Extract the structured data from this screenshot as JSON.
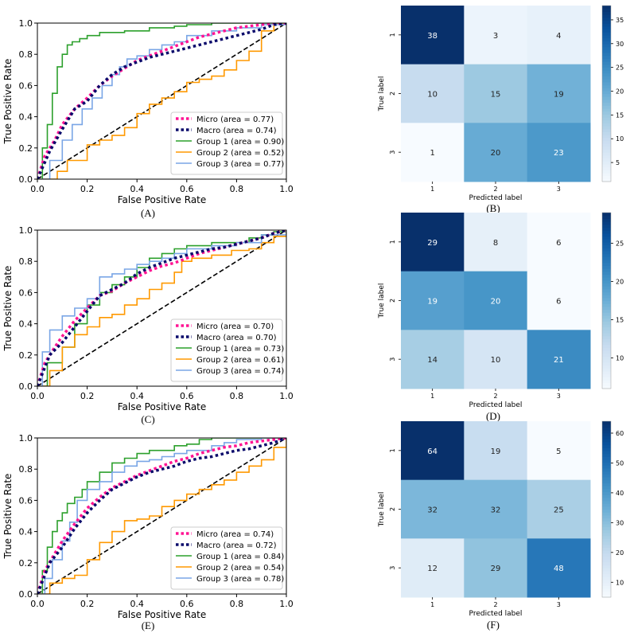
{
  "figure_title": "",
  "chart_data": [
    {
      "type": "line",
      "panel": "A",
      "caption": "(A)",
      "xlabel": "False Positive Rate",
      "ylabel": "True Positive Rate",
      "xlim": [
        0,
        1
      ],
      "ylim": [
        0,
        1
      ],
      "xticks": [
        0,
        0.2,
        0.4,
        0.6,
        0.8,
        1.0
      ],
      "yticks": [
        0,
        0.2,
        0.4,
        0.6,
        0.8,
        1.0
      ],
      "xtick_labels": [
        "0.0",
        "0.2",
        "0.4",
        "0.6",
        "0.8",
        "1.0"
      ],
      "ytick_labels": [
        "0.0",
        "0.2",
        "0.4",
        "0.6",
        "0.8",
        "1.0"
      ],
      "legend_position": "bottom-right",
      "series": [
        {
          "name": "Micro (area = 0.77)",
          "color": "#ff1493",
          "style": "dotted",
          "x": [
            0,
            0.03,
            0.07,
            0.1,
            0.15,
            0.2,
            0.25,
            0.3,
            0.35,
            0.4,
            0.45,
            0.5,
            0.55,
            0.6,
            0.65,
            0.7,
            0.75,
            0.8,
            0.85,
            0.9,
            0.95,
            1.0
          ],
          "y": [
            0,
            0.15,
            0.25,
            0.35,
            0.45,
            0.52,
            0.6,
            0.66,
            0.71,
            0.76,
            0.79,
            0.82,
            0.85,
            0.88,
            0.91,
            0.93,
            0.95,
            0.97,
            0.98,
            0.99,
            1.0,
            1.0
          ]
        },
        {
          "name": "Macro (area = 0.74)",
          "color": "#0a0a6b",
          "style": "dotted",
          "x": [
            0,
            0.05,
            0.1,
            0.15,
            0.2,
            0.25,
            0.3,
            0.35,
            0.4,
            0.45,
            0.5,
            0.55,
            0.6,
            0.65,
            0.7,
            0.75,
            0.8,
            0.85,
            0.9,
            0.95,
            1.0
          ],
          "y": [
            0,
            0.18,
            0.32,
            0.45,
            0.5,
            0.6,
            0.67,
            0.72,
            0.75,
            0.78,
            0.8,
            0.82,
            0.84,
            0.86,
            0.88,
            0.9,
            0.92,
            0.94,
            0.96,
            0.99,
            1.0
          ]
        },
        {
          "name": "Group 1 (area = 0.90)",
          "color": "#2ca02c",
          "style": "solid",
          "x": [
            0,
            0.02,
            0.04,
            0.06,
            0.08,
            0.1,
            0.12,
            0.14,
            0.17,
            0.2,
            0.25,
            0.3,
            0.35,
            0.45,
            0.55,
            0.6,
            0.7,
            0.8,
            0.9,
            1.0
          ],
          "y": [
            0,
            0.2,
            0.35,
            0.55,
            0.72,
            0.8,
            0.86,
            0.88,
            0.9,
            0.92,
            0.94,
            0.94,
            0.95,
            0.97,
            0.98,
            0.99,
            1.0,
            1.0,
            1.0,
            1.0
          ]
        },
        {
          "name": "Group 2 (area = 0.52)",
          "color": "#ff9900",
          "style": "solid",
          "x": [
            0,
            0.08,
            0.12,
            0.2,
            0.25,
            0.3,
            0.35,
            0.4,
            0.45,
            0.5,
            0.55,
            0.6,
            0.65,
            0.7,
            0.75,
            0.8,
            0.85,
            0.9,
            0.95,
            1.0
          ],
          "y": [
            0,
            0.05,
            0.12,
            0.22,
            0.25,
            0.28,
            0.33,
            0.42,
            0.48,
            0.52,
            0.56,
            0.62,
            0.64,
            0.66,
            0.7,
            0.76,
            0.82,
            0.95,
            1.0,
            1.0
          ]
        },
        {
          "name": "Group 3 (area = 0.77)",
          "color": "#7aa6e6",
          "style": "solid",
          "x": [
            0,
            0.05,
            0.1,
            0.14,
            0.18,
            0.22,
            0.26,
            0.3,
            0.33,
            0.36,
            0.4,
            0.45,
            0.5,
            0.55,
            0.6,
            0.7,
            0.8,
            0.9,
            1.0
          ],
          "y": [
            0,
            0.12,
            0.25,
            0.35,
            0.45,
            0.52,
            0.6,
            0.67,
            0.72,
            0.77,
            0.79,
            0.83,
            0.86,
            0.88,
            0.92,
            0.95,
            0.97,
            0.99,
            1.0
          ]
        },
        {
          "name": "chance",
          "color": "#000000",
          "style": "dashed",
          "legend": false,
          "x": [
            0,
            1
          ],
          "y": [
            0,
            1
          ]
        }
      ]
    },
    {
      "type": "heatmap",
      "panel": "B",
      "caption": "(B)",
      "xlabel": "Predicted label",
      "ylabel": "True label",
      "categories": [
        "1",
        "2",
        "3"
      ],
      "values": [
        [
          38,
          3,
          4
        ],
        [
          10,
          15,
          19
        ],
        [
          1,
          20,
          23
        ]
      ],
      "colorbar_ticks": [
        5,
        10,
        15,
        20,
        25,
        30,
        35
      ],
      "vmin": 1,
      "vmax": 38
    },
    {
      "type": "line",
      "panel": "C",
      "caption": "(C)",
      "xlabel": "False Positive Rate",
      "ylabel": "True Positive Rate",
      "xlim": [
        0,
        1
      ],
      "ylim": [
        0,
        1
      ],
      "xticks": [
        0,
        0.2,
        0.4,
        0.6,
        0.8,
        1.0
      ],
      "yticks": [
        0,
        0.2,
        0.4,
        0.6,
        0.8,
        1.0
      ],
      "xtick_labels": [
        "0.0",
        "0.2",
        "0.4",
        "0.6",
        "0.8",
        "1.0"
      ],
      "ytick_labels": [
        "0.0",
        "0.2",
        "0.4",
        "0.6",
        "0.8",
        "1.0"
      ],
      "legend_position": "bottom-right",
      "series": [
        {
          "name": "Micro (area = 0.70)",
          "color": "#ff1493",
          "style": "dotted",
          "x": [
            0,
            0.03,
            0.07,
            0.1,
            0.15,
            0.2,
            0.25,
            0.3,
            0.35,
            0.4,
            0.45,
            0.5,
            0.55,
            0.6,
            0.65,
            0.7,
            0.75,
            0.8,
            0.85,
            0.9,
            0.95,
            1.0
          ],
          "y": [
            0,
            0.15,
            0.25,
            0.32,
            0.42,
            0.5,
            0.58,
            0.61,
            0.66,
            0.7,
            0.74,
            0.77,
            0.79,
            0.82,
            0.85,
            0.87,
            0.89,
            0.91,
            0.93,
            0.95,
            0.98,
            1.0
          ]
        },
        {
          "name": "Macro (area = 0.70)",
          "color": "#0a0a6b",
          "style": "dotted",
          "x": [
            0,
            0.05,
            0.1,
            0.15,
            0.2,
            0.25,
            0.3,
            0.35,
            0.4,
            0.45,
            0.5,
            0.55,
            0.6,
            0.65,
            0.7,
            0.75,
            0.8,
            0.85,
            0.9,
            0.95,
            1.0
          ],
          "y": [
            0,
            0.2,
            0.28,
            0.38,
            0.48,
            0.58,
            0.62,
            0.66,
            0.72,
            0.76,
            0.79,
            0.82,
            0.84,
            0.86,
            0.88,
            0.89,
            0.91,
            0.93,
            0.95,
            0.98,
            1.0
          ]
        },
        {
          "name": "Group 1 (area = 0.73)",
          "color": "#2ca02c",
          "style": "solid",
          "x": [
            0,
            0.04,
            0.1,
            0.15,
            0.2,
            0.25,
            0.3,
            0.35,
            0.4,
            0.45,
            0.5,
            0.55,
            0.6,
            0.7,
            0.8,
            0.85,
            0.9,
            0.95,
            1.0
          ],
          "y": [
            0,
            0.15,
            0.25,
            0.4,
            0.52,
            0.6,
            0.65,
            0.7,
            0.76,
            0.82,
            0.85,
            0.88,
            0.9,
            0.92,
            0.92,
            0.95,
            0.97,
            0.99,
            1.0
          ]
        },
        {
          "name": "Group 2 (area = 0.61)",
          "color": "#ff9900",
          "style": "solid",
          "x": [
            0,
            0.05,
            0.1,
            0.15,
            0.2,
            0.25,
            0.3,
            0.35,
            0.4,
            0.45,
            0.5,
            0.55,
            0.58,
            0.62,
            0.7,
            0.78,
            0.85,
            0.9,
            0.95,
            1.0
          ],
          "y": [
            0,
            0.1,
            0.25,
            0.33,
            0.38,
            0.44,
            0.46,
            0.52,
            0.56,
            0.62,
            0.66,
            0.73,
            0.8,
            0.82,
            0.84,
            0.87,
            0.88,
            0.92,
            0.96,
            1.0
          ]
        },
        {
          "name": "Group 3 (area = 0.74)",
          "color": "#7aa6e6",
          "style": "solid",
          "x": [
            0,
            0.02,
            0.05,
            0.1,
            0.15,
            0.2,
            0.25,
            0.3,
            0.35,
            0.4,
            0.45,
            0.5,
            0.55,
            0.6,
            0.7,
            0.8,
            0.9,
            1.0
          ],
          "y": [
            0,
            0.22,
            0.36,
            0.45,
            0.5,
            0.56,
            0.7,
            0.72,
            0.75,
            0.78,
            0.8,
            0.82,
            0.85,
            0.88,
            0.9,
            0.92,
            0.97,
            1.0
          ]
        },
        {
          "name": "chance",
          "color": "#000000",
          "style": "dashed",
          "legend": false,
          "x": [
            0,
            1
          ],
          "y": [
            0,
            1
          ]
        }
      ]
    },
    {
      "type": "heatmap",
      "panel": "D",
      "caption": "(D)",
      "xlabel": "Predicted label",
      "ylabel": "True label",
      "categories": [
        "1",
        "2",
        "3"
      ],
      "values": [
        [
          29,
          8,
          6
        ],
        [
          19,
          20,
          6
        ],
        [
          14,
          10,
          21
        ]
      ],
      "colorbar_ticks": [
        10,
        15,
        20,
        25
      ],
      "vmin": 6,
      "vmax": 29
    },
    {
      "type": "line",
      "panel": "E",
      "caption": "(E)",
      "xlabel": "False Positive Rate",
      "ylabel": "True Positive Rate",
      "xlim": [
        0,
        1
      ],
      "ylim": [
        0,
        1
      ],
      "xticks": [
        0,
        0.2,
        0.4,
        0.6,
        0.8,
        1.0
      ],
      "yticks": [
        0,
        0.2,
        0.4,
        0.6,
        0.8,
        1.0
      ],
      "xtick_labels": [
        "0.0",
        "0.2",
        "0.4",
        "0.6",
        "0.8",
        "1.0"
      ],
      "ytick_labels": [
        "0.0",
        "0.2",
        "0.4",
        "0.6",
        "0.8",
        "1.0"
      ],
      "legend_position": "bottom-right",
      "series": [
        {
          "name": "Micro (area = 0.74)",
          "color": "#ff1493",
          "style": "dotted",
          "x": [
            0,
            0.03,
            0.07,
            0.1,
            0.15,
            0.2,
            0.25,
            0.3,
            0.35,
            0.4,
            0.45,
            0.5,
            0.55,
            0.6,
            0.65,
            0.7,
            0.75,
            0.8,
            0.85,
            0.9,
            0.95,
            1.0
          ],
          "y": [
            0,
            0.15,
            0.26,
            0.34,
            0.45,
            0.55,
            0.62,
            0.68,
            0.72,
            0.76,
            0.79,
            0.82,
            0.85,
            0.87,
            0.9,
            0.92,
            0.94,
            0.95,
            0.97,
            0.98,
            0.99,
            1.0
          ]
        },
        {
          "name": "Macro (area = 0.72)",
          "color": "#0a0a6b",
          "style": "dotted",
          "x": [
            0,
            0.05,
            0.1,
            0.15,
            0.2,
            0.25,
            0.3,
            0.35,
            0.4,
            0.45,
            0.5,
            0.55,
            0.6,
            0.65,
            0.7,
            0.75,
            0.8,
            0.85,
            0.9,
            0.95,
            1.0
          ],
          "y": [
            0,
            0.2,
            0.3,
            0.42,
            0.52,
            0.6,
            0.67,
            0.71,
            0.75,
            0.78,
            0.8,
            0.82,
            0.85,
            0.87,
            0.88,
            0.9,
            0.92,
            0.93,
            0.95,
            0.97,
            1.0
          ]
        },
        {
          "name": "Group 1 (area = 0.84)",
          "color": "#2ca02c",
          "style": "solid",
          "x": [
            0,
            0.02,
            0.04,
            0.06,
            0.08,
            0.1,
            0.12,
            0.15,
            0.18,
            0.2,
            0.25,
            0.3,
            0.35,
            0.4,
            0.45,
            0.5,
            0.55,
            0.6,
            0.65,
            0.7,
            0.8,
            0.9,
            1.0
          ],
          "y": [
            0,
            0.15,
            0.3,
            0.4,
            0.47,
            0.52,
            0.58,
            0.62,
            0.67,
            0.72,
            0.78,
            0.84,
            0.87,
            0.9,
            0.92,
            0.92,
            0.95,
            0.96,
            0.99,
            1.0,
            1.0,
            1.0,
            1.0
          ]
        },
        {
          "name": "Group 2 (area = 0.54)",
          "color": "#ff9900",
          "style": "solid",
          "x": [
            0,
            0.05,
            0.1,
            0.15,
            0.2,
            0.25,
            0.3,
            0.35,
            0.4,
            0.45,
            0.5,
            0.55,
            0.6,
            0.65,
            0.7,
            0.75,
            0.8,
            0.85,
            0.9,
            0.95,
            1.0
          ],
          "y": [
            0,
            0.07,
            0.1,
            0.12,
            0.22,
            0.33,
            0.4,
            0.47,
            0.48,
            0.5,
            0.56,
            0.6,
            0.64,
            0.67,
            0.7,
            0.73,
            0.78,
            0.82,
            0.86,
            0.94,
            1.0
          ]
        },
        {
          "name": "Group 3 (area = 0.78)",
          "color": "#7aa6e6",
          "style": "solid",
          "x": [
            0,
            0.03,
            0.06,
            0.1,
            0.13,
            0.16,
            0.2,
            0.25,
            0.3,
            0.35,
            0.4,
            0.45,
            0.5,
            0.55,
            0.6,
            0.7,
            0.75,
            0.8,
            0.9,
            1.0
          ],
          "y": [
            0,
            0.1,
            0.22,
            0.34,
            0.46,
            0.6,
            0.67,
            0.72,
            0.78,
            0.82,
            0.85,
            0.86,
            0.88,
            0.9,
            0.92,
            0.95,
            0.97,
            0.99,
            1.0,
            1.0
          ]
        },
        {
          "name": "chance",
          "color": "#000000",
          "style": "dashed",
          "legend": false,
          "x": [
            0,
            1
          ],
          "y": [
            0,
            1
          ]
        }
      ]
    },
    {
      "type": "heatmap",
      "panel": "F",
      "caption": "(F)",
      "xlabel": "Predicted label",
      "ylabel": "True label",
      "categories": [
        "1",
        "2",
        "3"
      ],
      "values": [
        [
          64,
          19,
          5
        ],
        [
          32,
          32,
          25
        ],
        [
          12,
          29,
          48
        ]
      ],
      "colorbar_ticks": [
        10,
        20,
        30,
        40,
        50,
        60
      ],
      "vmin": 5,
      "vmax": 64
    }
  ]
}
